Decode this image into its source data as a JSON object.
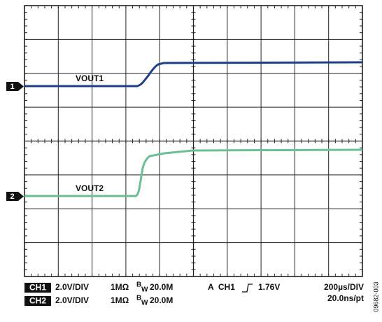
{
  "traces": [
    {
      "marker": "1",
      "label": "VOUT1"
    },
    {
      "marker": "2",
      "label": "VOUT2"
    }
  ],
  "channels": [
    {
      "name": "CH1",
      "scale": "2.0V/DIV",
      "impedance": "1MΩ",
      "bw_prefix": "B",
      "bw_sub": "W",
      "bandwidth": "20.0M"
    },
    {
      "name": "CH2",
      "scale": "2.0V/DIV",
      "impedance": "1MΩ",
      "bw_prefix": "B",
      "bw_sub": "W",
      "bandwidth": "20.0M"
    }
  ],
  "trigger": {
    "source": "A  CH1",
    "level": "1.76V"
  },
  "timebase": {
    "scale": "200µs/DIV",
    "sample": "20.0ns/pt"
  },
  "figure_code": "09682-003"
}
